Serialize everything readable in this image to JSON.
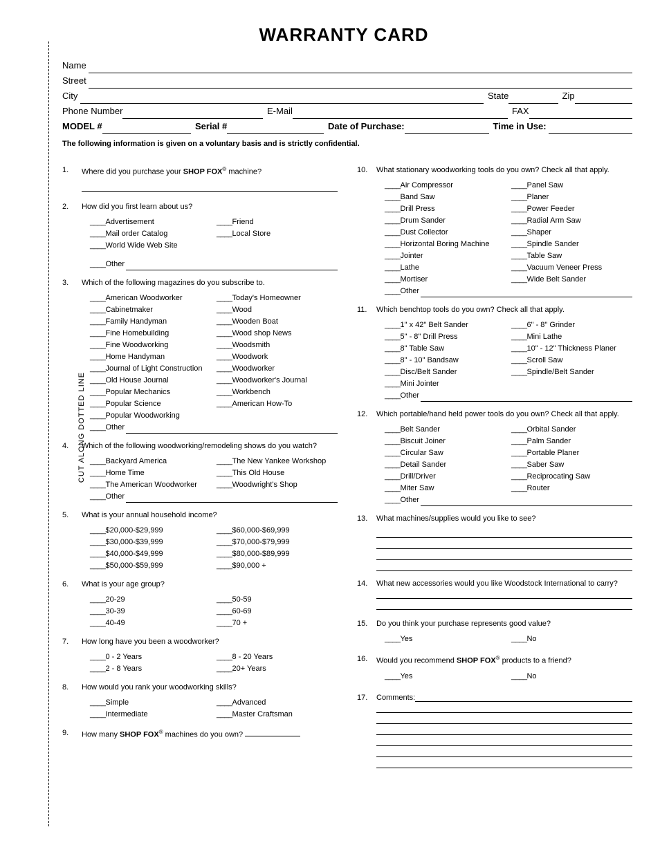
{
  "title": "WARRANTY CARD",
  "cut_label": "CUT ALONG DOTTED LINE",
  "header": {
    "name": "Name",
    "street": "Street",
    "city": "City",
    "state": "State",
    "zip": "Zip",
    "phone": "Phone Number",
    "email": "E-Mail",
    "fax": "FAX",
    "model": "MODEL #",
    "serial": "Serial #",
    "dop": "Date of Purchase:",
    "tiu": "Time in Use:"
  },
  "conf": "The following information is given on a voluntary basis and is strictly confidential.",
  "brand": "SHOP FOX",
  "reg": "®",
  "other": "Other",
  "q1": {
    "n": "1.",
    "t": "Where did you purchase your ",
    "t2": " machine?"
  },
  "q2": {
    "n": "2.",
    "t": "How did you first learn about us?",
    "a": [
      "Advertisement",
      "Mail order Catalog",
      "World Wide Web Site"
    ],
    "b": [
      "Friend",
      "Local Store"
    ]
  },
  "q3": {
    "n": "3.",
    "t": "Which of the following magazines do you subscribe to.",
    "a": [
      "American Woodworker",
      "Cabinetmaker",
      "Family Handyman",
      "Fine Homebuilding",
      "Fine Woodworking",
      "Home Handyman",
      "Journal of Light Construction",
      "Old House Journal",
      "Popular Mechanics",
      "Popular Science",
      "Popular Woodworking"
    ],
    "b": [
      "Today's Homeowner",
      "Wood",
      "Wooden Boat",
      "Wood shop News",
      "Woodsmith",
      "Woodwork",
      "Woodworker",
      "Woodworker's Journal",
      "Workbench",
      "American How-To"
    ]
  },
  "q4": {
    "n": "4.",
    "t": "Which of the following woodworking/remodeling shows do you watch?",
    "a": [
      "Backyard America",
      "Home Time",
      "The American Woodworker"
    ],
    "b": [
      "The New Yankee Workshop",
      "This Old House",
      "Woodwright's Shop"
    ]
  },
  "q5": {
    "n": "5.",
    "t": "What is your annual household income?",
    "a": [
      "$20,000-$29,999",
      "$30,000-$39,999",
      "$40,000-$49,999",
      "$50,000-$59,999"
    ],
    "b": [
      "$60,000-$69,999",
      "$70,000-$79,999",
      "$80,000-$89,999",
      "$90,000 +"
    ]
  },
  "q6": {
    "n": "6.",
    "t": "What is your age group?",
    "a": [
      "20-29",
      "30-39",
      "40-49"
    ],
    "b": [
      "50-59",
      "60-69",
      "70 +"
    ]
  },
  "q7": {
    "n": "7.",
    "t": "How long have you been a woodworker?",
    "a": [
      "0 - 2 Years",
      "2 - 8 Years"
    ],
    "b": [
      "8 - 20 Years",
      "20+ Years"
    ]
  },
  "q8": {
    "n": "8.",
    "t": "How would you rank your woodworking skills?",
    "a": [
      "Simple",
      "Intermediate"
    ],
    "b": [
      "Advanced",
      "Master Craftsman"
    ]
  },
  "q9": {
    "n": "9.",
    "t": "How many ",
    "t2": " machines do you own?"
  },
  "q10": {
    "n": "10.",
    "t": "What stationary woodworking tools do you own? Check all that apply.",
    "a": [
      "Air Compressor",
      "Band Saw",
      "Drill Press",
      "Drum Sander",
      "Dust Collector",
      "Horizontal Boring Machine",
      "Jointer",
      "Lathe",
      "Mortiser"
    ],
    "b": [
      "Panel Saw",
      "Planer",
      "Power Feeder",
      "Radial Arm Saw",
      "Shaper",
      "Spindle Sander",
      "Table Saw",
      "Vacuum Veneer Press",
      "Wide Belt Sander"
    ]
  },
  "q11": {
    "n": "11.",
    "t": "Which benchtop tools do you own? Check all that apply.",
    "a": [
      "1\" x 42\" Belt Sander",
      "5\" - 8\" Drill Press",
      "8\" Table Saw",
      "8\" - 10\" Bandsaw",
      "Disc/Belt Sander",
      "Mini Jointer"
    ],
    "b": [
      "6\" - 8\" Grinder",
      "Mini Lathe",
      "10\" - 12\" Thickness Planer",
      "Scroll Saw",
      "Spindle/Belt Sander"
    ]
  },
  "q12": {
    "n": "12.",
    "t": "Which portable/hand held power tools do you own? Check all that apply.",
    "a": [
      "Belt Sander",
      "Biscuit Joiner",
      "Circular Saw",
      "Detail Sander",
      "Drill/Driver",
      "Miter Saw"
    ],
    "b": [
      "Orbital Sander",
      "Palm Sander",
      "Portable Planer",
      "Saber Saw",
      "Reciprocating Saw",
      "Router"
    ]
  },
  "q13": {
    "n": "13.",
    "t": "What machines/supplies would you like to see?"
  },
  "q14": {
    "n": "14.",
    "t": "What new accessories would you like Woodstock International to carry?"
  },
  "q15": {
    "n": "15.",
    "t": "Do you think your purchase represents good value?",
    "yes": "Yes",
    "no": "No"
  },
  "q16": {
    "n": "16.",
    "t": "Would you recommend ",
    "t2": " products to a friend?",
    "yes": "Yes",
    "no": "No"
  },
  "q17": {
    "n": "17.",
    "t": "Comments:"
  }
}
